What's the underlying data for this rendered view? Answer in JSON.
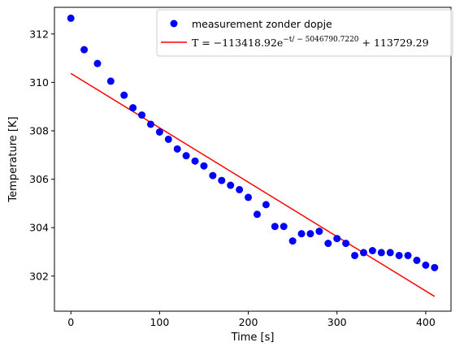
{
  "chart_data": {
    "type": "scatter",
    "xlabel": "Time [s]",
    "ylabel": "Temperature [K]",
    "xlim": [
      -18.5,
      428.5
    ],
    "ylim": [
      300.55,
      313.1
    ],
    "xticks": [
      0,
      100,
      200,
      300,
      400
    ],
    "yticks": [
      302,
      304,
      306,
      308,
      310,
      312
    ],
    "grid": false,
    "legend_position": "top-right",
    "series": [
      {
        "name": "measurement zonder dopje",
        "kind": "scatter",
        "color": "#0000ff",
        "x": [
          0,
          15,
          30,
          45,
          60,
          70,
          80,
          90,
          100,
          110,
          120,
          130,
          140,
          150,
          160,
          170,
          180,
          190,
          200,
          210,
          220,
          230,
          240,
          250,
          260,
          270,
          280,
          290,
          300,
          310,
          320,
          330,
          340,
          350,
          360,
          370,
          380,
          390,
          400,
          410
        ],
        "y": [
          312.65,
          311.35,
          310.78,
          310.05,
          309.47,
          308.95,
          308.65,
          308.27,
          307.95,
          307.65,
          307.25,
          306.97,
          306.75,
          306.55,
          306.15,
          305.95,
          305.75,
          305.57,
          305.25,
          304.55,
          304.95,
          304.05,
          304.05,
          303.45,
          303.75,
          303.75,
          303.85,
          303.35,
          303.55,
          303.35,
          302.85,
          302.97,
          303.05,
          302.97,
          302.97,
          302.85,
          302.85,
          302.65,
          302.45,
          302.35
        ]
      },
      {
        "name": "T = -113418.92e^{-t/-5046790.7220} + 113729.29",
        "kind": "line",
        "color": "#ff0000",
        "x": [
          0,
          410
        ],
        "y": [
          310.37,
          301.16
        ]
      }
    ],
    "legend": {
      "scatter_label": "measurement zonder dopje",
      "fit_label_main": "T = −113418.92e",
      "fit_label_exp": "−t/ − 5046790.7220",
      "fit_label_tail": " + 113729.29"
    }
  }
}
